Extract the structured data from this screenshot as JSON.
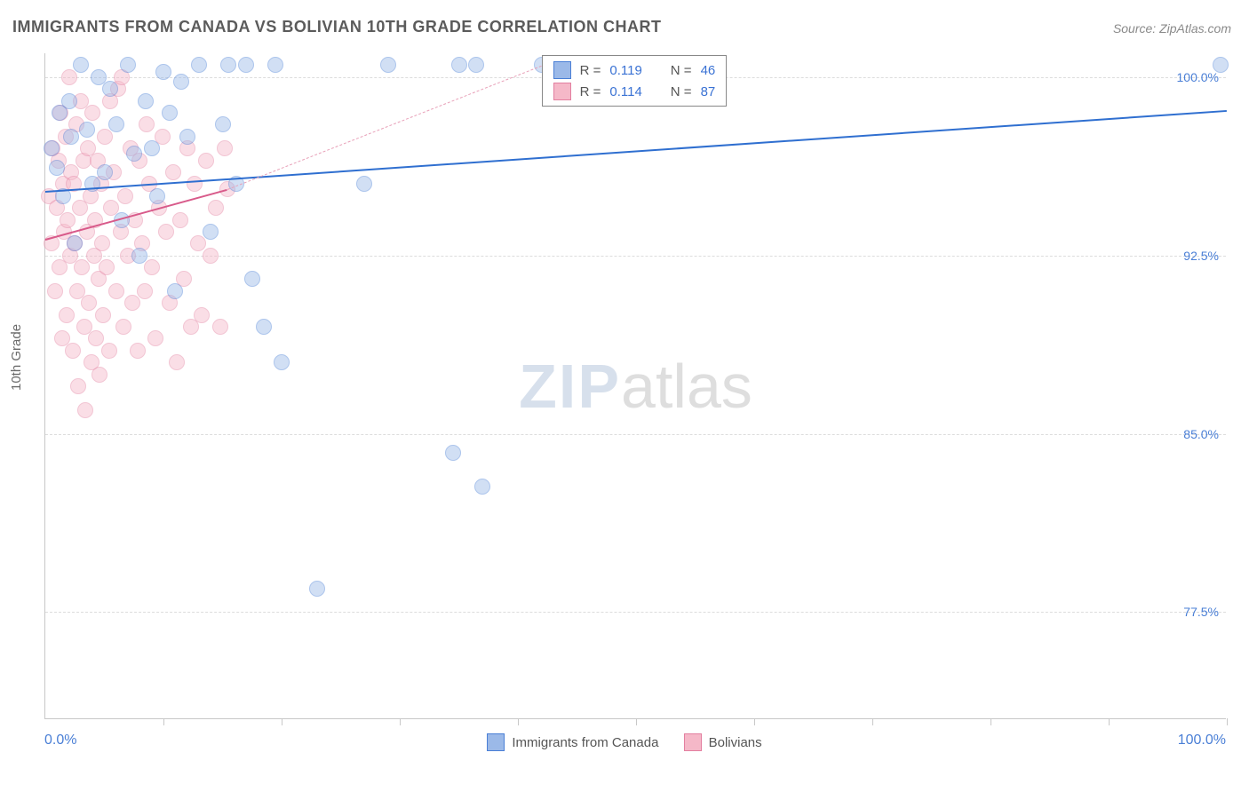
{
  "title": "IMMIGRANTS FROM CANADA VS BOLIVIAN 10TH GRADE CORRELATION CHART",
  "source": "Source: ZipAtlas.com",
  "ylabel": "10th Grade",
  "watermark": {
    "zip": "ZIP",
    "atlas": "atlas"
  },
  "chart": {
    "type": "scatter",
    "background_color": "#ffffff",
    "grid_color": "#dcdcdc",
    "axis_color": "#c8c8c8",
    "label_color": "#4a7fd6",
    "title_color": "#5b5b5b",
    "title_fontsize": 18,
    "label_fontsize": 14,
    "xlim": [
      0,
      100
    ],
    "ylim": [
      73,
      101
    ],
    "yticks": [
      77.5,
      85.0,
      92.5,
      100.0
    ],
    "ytick_labels": [
      "77.5%",
      "85.0%",
      "92.5%",
      "100.0%"
    ],
    "xticks": [
      10,
      20,
      30,
      40,
      50,
      60,
      70,
      80,
      90,
      100
    ],
    "x_min_label": "0.0%",
    "x_max_label": "100.0%",
    "marker_radius": 9,
    "marker_opacity": 0.45,
    "marker_border_width": 1.2,
    "series": [
      {
        "name": "Immigrants from Canada",
        "fill": "#9bb9e8",
        "stroke": "#4a7fd6",
        "r_label": "R =",
        "r_value": "0.119",
        "n_label": "N =",
        "n_value": "46",
        "trend": {
          "x1": 0,
          "y1": 95.2,
          "x2": 100,
          "y2": 98.6,
          "color": "#2f6fd0",
          "width": 2,
          "dash": false
        },
        "points": [
          [
            0.5,
            97.0
          ],
          [
            1.0,
            96.2
          ],
          [
            1.2,
            98.5
          ],
          [
            1.5,
            95.0
          ],
          [
            2.0,
            99.0
          ],
          [
            2.2,
            97.5
          ],
          [
            2.5,
            93.0
          ],
          [
            3.0,
            100.5
          ],
          [
            3.5,
            97.8
          ],
          [
            4.0,
            95.5
          ],
          [
            4.5,
            100.0
          ],
          [
            5.0,
            96.0
          ],
          [
            5.5,
            99.5
          ],
          [
            6.0,
            98.0
          ],
          [
            6.5,
            94.0
          ],
          [
            7.0,
            100.5
          ],
          [
            7.5,
            96.8
          ],
          [
            8.0,
            92.5
          ],
          [
            8.5,
            99.0
          ],
          [
            9.0,
            97.0
          ],
          [
            9.5,
            95.0
          ],
          [
            10.0,
            100.2
          ],
          [
            10.5,
            98.5
          ],
          [
            11.0,
            91.0
          ],
          [
            11.5,
            99.8
          ],
          [
            12.0,
            97.5
          ],
          [
            13.0,
            100.5
          ],
          [
            14.0,
            93.5
          ],
          [
            15.0,
            98.0
          ],
          [
            15.5,
            100.5
          ],
          [
            16.2,
            95.5
          ],
          [
            17.0,
            100.5
          ],
          [
            17.5,
            91.5
          ],
          [
            18.5,
            89.5
          ],
          [
            19.5,
            100.5
          ],
          [
            20.0,
            88.0
          ],
          [
            23.0,
            78.5
          ],
          [
            27.0,
            95.5
          ],
          [
            29.0,
            100.5
          ],
          [
            34.5,
            84.2
          ],
          [
            35.0,
            100.5
          ],
          [
            36.5,
            100.5
          ],
          [
            37.0,
            82.8
          ],
          [
            42.0,
            100.5
          ],
          [
            55.0,
            100.5
          ],
          [
            99.5,
            100.5
          ]
        ]
      },
      {
        "name": "Bolivians",
        "fill": "#f5b8c8",
        "stroke": "#e37fa0",
        "r_label": "R =",
        "r_value": "0.114",
        "n_label": "N =",
        "n_value": "87",
        "trend": {
          "x1": 0,
          "y1": 93.2,
          "x2": 15.4,
          "y2": 95.3,
          "color": "#d85a8a",
          "width": 2,
          "dash": false
        },
        "trend_ext": {
          "x1": 15.4,
          "y1": 95.3,
          "x2": 42,
          "y2": 100.5,
          "color": "#e8a0b8",
          "width": 1,
          "dash": true
        },
        "points": [
          [
            0.3,
            95.0
          ],
          [
            0.5,
            93.0
          ],
          [
            0.6,
            97.0
          ],
          [
            0.8,
            91.0
          ],
          [
            1.0,
            94.5
          ],
          [
            1.1,
            96.5
          ],
          [
            1.2,
            92.0
          ],
          [
            1.3,
            98.5
          ],
          [
            1.4,
            89.0
          ],
          [
            1.5,
            95.5
          ],
          [
            1.6,
            93.5
          ],
          [
            1.7,
            97.5
          ],
          [
            1.8,
            90.0
          ],
          [
            1.9,
            94.0
          ],
          [
            2.0,
            100.0
          ],
          [
            2.1,
            92.5
          ],
          [
            2.2,
            96.0
          ],
          [
            2.3,
            88.5
          ],
          [
            2.4,
            95.5
          ],
          [
            2.5,
            93.0
          ],
          [
            2.6,
            98.0
          ],
          [
            2.7,
            91.0
          ],
          [
            2.8,
            87.0
          ],
          [
            2.9,
            94.5
          ],
          [
            3.0,
            99.0
          ],
          [
            3.1,
            92.0
          ],
          [
            3.2,
            96.5
          ],
          [
            3.3,
            89.5
          ],
          [
            3.4,
            86.0
          ],
          [
            3.5,
            93.5
          ],
          [
            3.6,
            97.0
          ],
          [
            3.7,
            90.5
          ],
          [
            3.8,
            95.0
          ],
          [
            3.9,
            88.0
          ],
          [
            4.0,
            98.5
          ],
          [
            4.1,
            92.5
          ],
          [
            4.2,
            94.0
          ],
          [
            4.3,
            89.0
          ],
          [
            4.4,
            96.5
          ],
          [
            4.5,
            91.5
          ],
          [
            4.6,
            87.5
          ],
          [
            4.7,
            95.5
          ],
          [
            4.8,
            93.0
          ],
          [
            4.9,
            90.0
          ],
          [
            5.0,
            97.5
          ],
          [
            5.2,
            92.0
          ],
          [
            5.4,
            88.5
          ],
          [
            5.6,
            94.5
          ],
          [
            5.8,
            96.0
          ],
          [
            6.0,
            91.0
          ],
          [
            6.2,
            99.5
          ],
          [
            6.4,
            93.5
          ],
          [
            6.6,
            89.5
          ],
          [
            6.8,
            95.0
          ],
          [
            7.0,
            92.5
          ],
          [
            7.2,
            97.0
          ],
          [
            7.4,
            90.5
          ],
          [
            7.6,
            94.0
          ],
          [
            7.8,
            88.5
          ],
          [
            8.0,
            96.5
          ],
          [
            8.2,
            93.0
          ],
          [
            8.4,
            91.0
          ],
          [
            8.6,
            98.0
          ],
          [
            8.8,
            95.5
          ],
          [
            9.0,
            92.0
          ],
          [
            9.3,
            89.0
          ],
          [
            9.6,
            94.5
          ],
          [
            9.9,
            97.5
          ],
          [
            10.2,
            93.5
          ],
          [
            10.5,
            90.5
          ],
          [
            10.8,
            96.0
          ],
          [
            11.1,
            88.0
          ],
          [
            11.4,
            94.0
          ],
          [
            11.7,
            91.5
          ],
          [
            12.0,
            97.0
          ],
          [
            12.3,
            89.5
          ],
          [
            12.6,
            95.5
          ],
          [
            12.9,
            93.0
          ],
          [
            13.2,
            90.0
          ],
          [
            13.6,
            96.5
          ],
          [
            14.0,
            92.5
          ],
          [
            14.4,
            94.5
          ],
          [
            14.8,
            89.5
          ],
          [
            15.2,
            97.0
          ],
          [
            15.4,
            95.3
          ],
          [
            5.5,
            99.0
          ],
          [
            6.5,
            100.0
          ]
        ]
      }
    ]
  },
  "bottom_legend": [
    {
      "label": "Immigrants from Canada",
      "fill": "#9bb9e8",
      "stroke": "#4a7fd6"
    },
    {
      "label": "Bolivians",
      "fill": "#f5b8c8",
      "stroke": "#e37fa0"
    }
  ]
}
